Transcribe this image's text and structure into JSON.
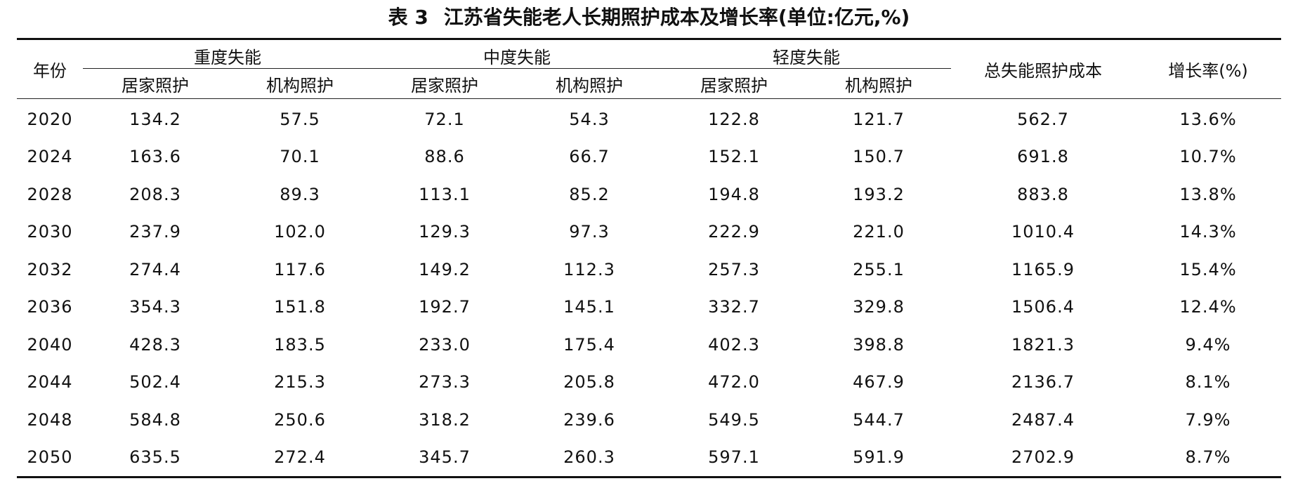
{
  "caption": {
    "number": "表 3",
    "title": "江苏省失能老人长期照护成本及增长率(单位:亿元,%)"
  },
  "header": {
    "year": "年份",
    "groups": [
      "重度失能",
      "中度失能",
      "轻度失能"
    ],
    "subcols": [
      "居家照护",
      "机构照护",
      "居家照护",
      "机构照护",
      "居家照护",
      "机构照护"
    ],
    "total": "总失能照护成本",
    "rate": "增长率(%)"
  },
  "rows": [
    {
      "year": "2020",
      "values": [
        "134.2",
        "57.5",
        "72.1",
        "54.3",
        "122.8",
        "121.7"
      ],
      "total": "562.7",
      "rate": "13.6%"
    },
    {
      "year": "2024",
      "values": [
        "163.6",
        "70.1",
        "88.6",
        "66.7",
        "152.1",
        "150.7"
      ],
      "total": "691.8",
      "rate": "10.7%"
    },
    {
      "year": "2028",
      "values": [
        "208.3",
        "89.3",
        "113.1",
        "85.2",
        "194.8",
        "193.2"
      ],
      "total": "883.8",
      "rate": "13.8%"
    },
    {
      "year": "2030",
      "values": [
        "237.9",
        "102.0",
        "129.3",
        "97.3",
        "222.9",
        "221.0"
      ],
      "total": "1010.4",
      "rate": "14.3%"
    },
    {
      "year": "2032",
      "values": [
        "274.4",
        "117.6",
        "149.2",
        "112.3",
        "257.3",
        "255.1"
      ],
      "total": "1165.9",
      "rate": "15.4%"
    },
    {
      "year": "2036",
      "values": [
        "354.3",
        "151.8",
        "192.7",
        "145.1",
        "332.7",
        "329.8"
      ],
      "total": "1506.4",
      "rate": "12.4%"
    },
    {
      "year": "2040",
      "values": [
        "428.3",
        "183.5",
        "233.0",
        "175.4",
        "402.3",
        "398.8"
      ],
      "total": "1821.3",
      "rate": "9.4%"
    },
    {
      "year": "2044",
      "values": [
        "502.4",
        "215.3",
        "273.3",
        "205.8",
        "472.0",
        "467.9"
      ],
      "total": "2136.7",
      "rate": "8.1%"
    },
    {
      "year": "2048",
      "values": [
        "584.8",
        "250.6",
        "318.2",
        "239.6",
        "549.5",
        "544.7"
      ],
      "total": "2487.4",
      "rate": "7.9%"
    },
    {
      "year": "2050",
      "values": [
        "635.5",
        "272.4",
        "345.7",
        "260.3",
        "597.1",
        "591.9"
      ],
      "total": "2702.9",
      "rate": "8.7%"
    }
  ]
}
